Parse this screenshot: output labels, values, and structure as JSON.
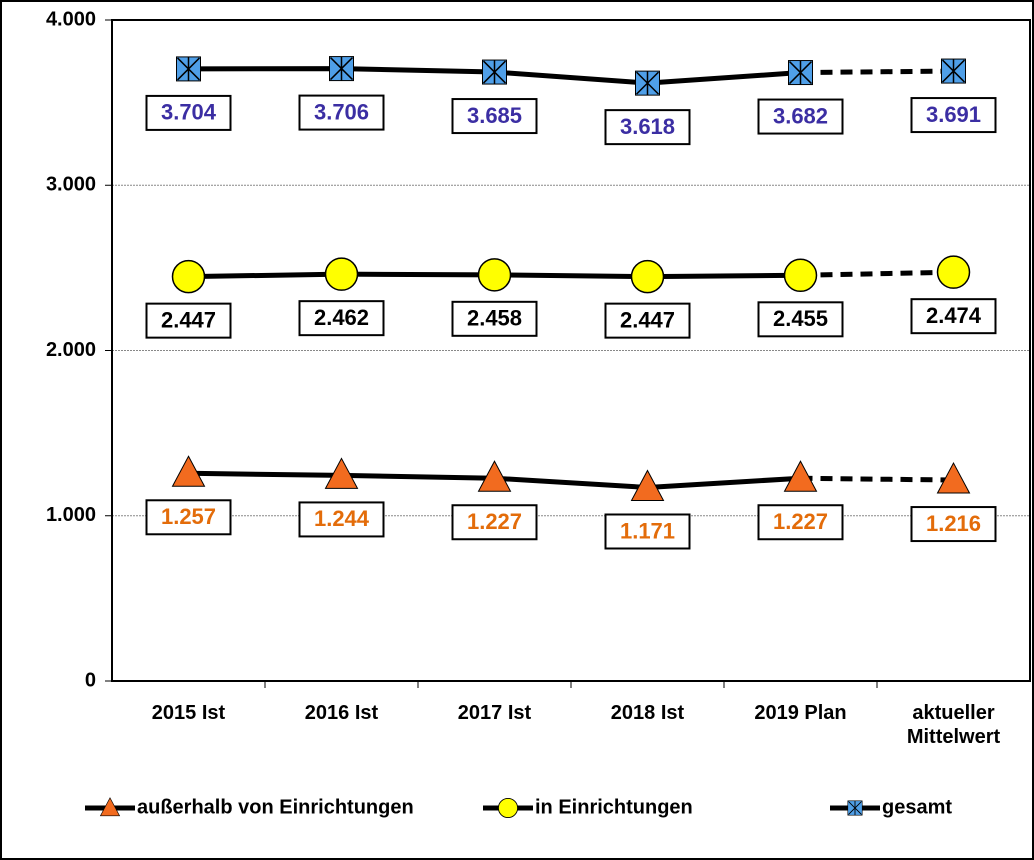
{
  "chart_data": {
    "type": "line",
    "categories": [
      "2015 Ist",
      "2016 Ist",
      "2017 Ist",
      "2018 Ist",
      "2019 Plan",
      "aktueller Mittelwert"
    ],
    "series": [
      {
        "name": "außerhalb von Einrichtungen",
        "color": "#f26b1f",
        "label_color": "#e36c0a",
        "marker": "triangle",
        "values": [
          1257,
          1244,
          1227,
          1171,
          1227,
          1216
        ],
        "value_labels": [
          "1.257",
          "1.244",
          "1.227",
          "1.171",
          "1.227",
          "1.216"
        ]
      },
      {
        "name": "in Einrichtungen",
        "color": "#ffff00",
        "label_color": "#000000",
        "marker": "circle",
        "values": [
          2447,
          2462,
          2458,
          2447,
          2455,
          2474
        ],
        "value_labels": [
          "2.447",
          "2.462",
          "2.458",
          "2.447",
          "2.455",
          "2.474"
        ]
      },
      {
        "name": "gesamt",
        "color": "#4f9fe8",
        "label_color": "#3b2ea3",
        "marker": "square-x",
        "values": [
          3704,
          3706,
          3685,
          3618,
          3682,
          3691
        ],
        "value_labels": [
          "3.704",
          "3.706",
          "3.685",
          "3.618",
          "3.682",
          "3.691"
        ]
      }
    ],
    "ylim": [
      0,
      4000
    ],
    "yticks": [
      0,
      {
        "value": 1000,
        "label": "1.000"
      },
      {
        "value": 2000,
        "label": "2.000"
      },
      {
        "value": 3000,
        "label": "3.000"
      },
      {
        "value": 4000,
        "label": "4.000"
      }
    ],
    "grid": true,
    "legend": "bottom"
  }
}
